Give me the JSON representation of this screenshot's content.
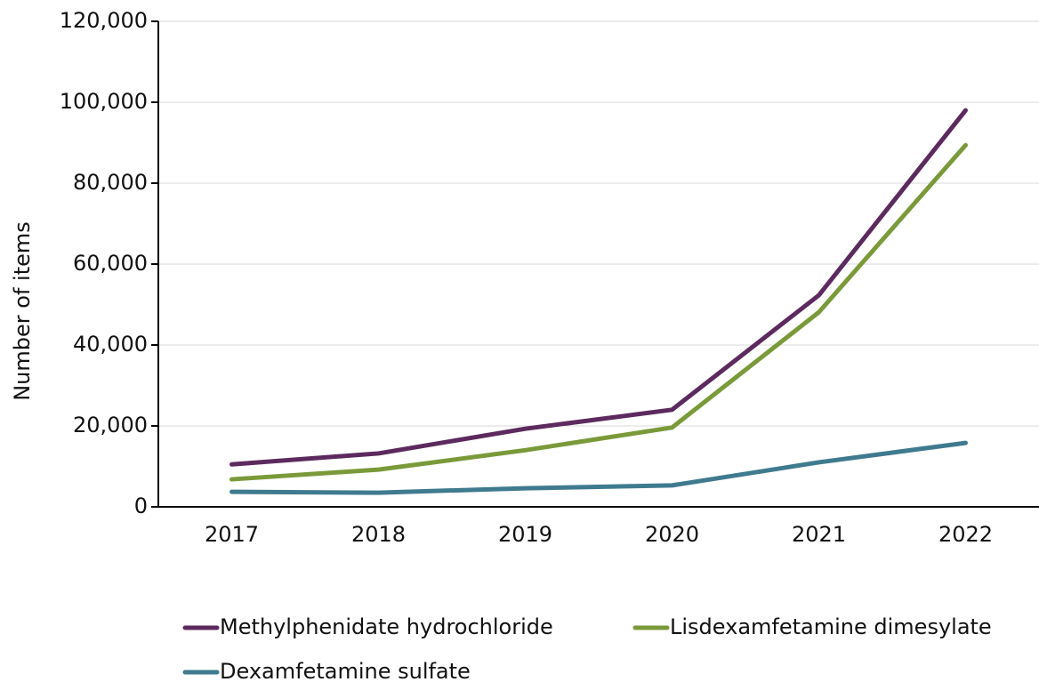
{
  "chart_data": {
    "type": "line",
    "y_label": "Number of items",
    "categories": [
      "2017",
      "2018",
      "2019",
      "2020",
      "2021",
      "2022"
    ],
    "series": [
      {
        "name": "Methylphenidate hydrochloride",
        "color": "#5c2a5e",
        "values": [
          10500,
          13200,
          19300,
          24000,
          52300,
          98000
        ]
      },
      {
        "name": "Lisdexamfetamine dimesylate",
        "color": "#7a9a3a",
        "values": [
          6800,
          9200,
          14000,
          19600,
          48100,
          89400
        ]
      },
      {
        "name": "Dexamfetamine sulfate",
        "color": "#3f7a8e",
        "values": [
          3700,
          3500,
          4600,
          5300,
          11000,
          15800
        ]
      }
    ],
    "ylim": [
      0,
      120000
    ],
    "yticks": [
      0,
      {
        "value": 20000,
        "label": "20,000"
      },
      {
        "value": 40000,
        "label": "40,000"
      },
      {
        "value": 60000,
        "label": "60,000"
      },
      {
        "value": 80000,
        "label": "80,000"
      },
      {
        "value": 100000,
        "label": "100,000"
      },
      {
        "value": 120000,
        "label": "120,000"
      }
    ],
    "grid": true,
    "legend": "bottom"
  }
}
